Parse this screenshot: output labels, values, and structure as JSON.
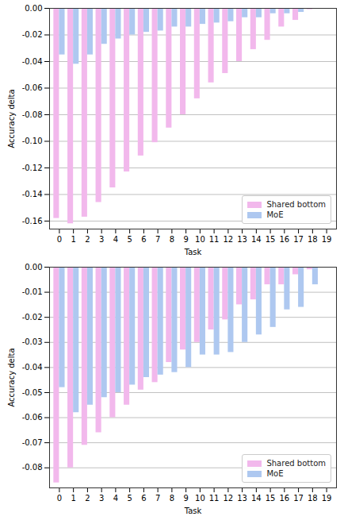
{
  "chart_data": [
    {
      "type": "bar",
      "x_label": "Task",
      "y_label": "Accuracy delta",
      "categories": [
        "0",
        "1",
        "2",
        "3",
        "4",
        "5",
        "6",
        "7",
        "8",
        "9",
        "10",
        "11",
        "12",
        "13",
        "14",
        "15",
        "16",
        "17",
        "18",
        "19"
      ],
      "series": [
        {
          "name": "Shared bottom",
          "color": "#f2b8ec",
          "values": [
            -0.158,
            -0.162,
            -0.157,
            -0.146,
            -0.135,
            -0.123,
            -0.111,
            -0.101,
            -0.09,
            -0.08,
            -0.068,
            -0.056,
            -0.049,
            -0.04,
            -0.031,
            -0.024,
            -0.014,
            -0.009,
            -0.001,
            0
          ]
        },
        {
          "name": "MoE",
          "color": "#aec8f0",
          "values": [
            -0.035,
            -0.042,
            -0.035,
            -0.027,
            -0.023,
            -0.02,
            -0.018,
            -0.017,
            -0.014,
            -0.014,
            -0.012,
            -0.011,
            -0.01,
            -0.007,
            -0.007,
            -0.004,
            -0.004,
            -0.003,
            0,
            0
          ]
        }
      ],
      "ylim": [
        -0.166,
        0
      ],
      "yticks": [
        {
          "value": 0,
          "label": "0.00"
        },
        {
          "value": -0.02,
          "label": "-0.02"
        },
        {
          "value": -0.04,
          "label": "-0.04"
        },
        {
          "value": -0.06,
          "label": "-0.06"
        },
        {
          "value": -0.08,
          "label": "-0.08"
        },
        {
          "value": -0.1,
          "label": "-0.10"
        },
        {
          "value": -0.12,
          "label": "-0.12"
        },
        {
          "value": -0.14,
          "label": "-0.14"
        },
        {
          "value": -0.16,
          "label": "-0.16"
        }
      ],
      "grid": true,
      "legend": "lower right"
    },
    {
      "type": "bar",
      "x_label": "Task",
      "y_label": "Accuracy delta",
      "categories": [
        "0",
        "1",
        "2",
        "3",
        "4",
        "5",
        "6",
        "7",
        "8",
        "9",
        "10",
        "11",
        "12",
        "13",
        "14",
        "15",
        "16",
        "17",
        "18",
        "19"
      ],
      "series": [
        {
          "name": "Shared bottom",
          "color": "#f2b8ec",
          "values": [
            -0.086,
            -0.08,
            -0.071,
            -0.066,
            -0.06,
            -0.055,
            -0.049,
            -0.046,
            -0.038,
            -0.033,
            -0.03,
            -0.025,
            -0.021,
            -0.015,
            -0.013,
            -0.007,
            -0.007,
            -0.003,
            -0.001,
            0
          ]
        },
        {
          "name": "MoE",
          "color": "#aec8f0",
          "values": [
            -0.048,
            -0.058,
            -0.055,
            -0.052,
            -0.05,
            -0.047,
            -0.044,
            -0.043,
            -0.042,
            -0.04,
            -0.035,
            -0.035,
            -0.034,
            -0.03,
            -0.027,
            -0.024,
            -0.017,
            -0.016,
            -0.007,
            0
          ]
        }
      ],
      "ylim": [
        -0.088,
        0
      ],
      "yticks": [
        {
          "value": 0,
          "label": "0.00"
        },
        {
          "value": -0.01,
          "label": "-0.01"
        },
        {
          "value": -0.02,
          "label": "-0.02"
        },
        {
          "value": -0.03,
          "label": "-0.03"
        },
        {
          "value": -0.04,
          "label": "-0.04"
        },
        {
          "value": -0.05,
          "label": "-0.05"
        },
        {
          "value": -0.06,
          "label": "-0.06"
        },
        {
          "value": -0.07,
          "label": "-0.07"
        },
        {
          "value": -0.08,
          "label": "-0.08"
        }
      ],
      "grid": true,
      "legend": "lower right"
    }
  ]
}
